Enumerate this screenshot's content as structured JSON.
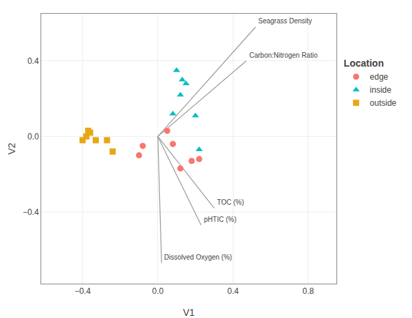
{
  "chart_data": {
    "type": "scatter",
    "xlabel": "V1",
    "ylabel": "V2",
    "legend_title": "Location",
    "legend": "right",
    "grid": true,
    "xlim": [
      -0.62,
      0.95
    ],
    "ylim": [
      -0.78,
      0.65
    ],
    "xticks": [
      {
        "value": -0.4,
        "label": "−0.4"
      },
      {
        "value": 0.0,
        "label": "0.0"
      },
      0.4,
      0.8
    ],
    "yticks": [
      {
        "value": -0.4,
        "label": "−0.4"
      },
      {
        "value": 0.0,
        "label": "0.0"
      },
      0.4
    ],
    "series": [
      {
        "name": "edge",
        "color": "#F8766D",
        "marker": "circle",
        "x": [
          0.05,
          -0.08,
          -0.1,
          0.18,
          0.22,
          0.12,
          0.08
        ],
        "values": [
          0.03,
          -0.05,
          -0.1,
          -0.13,
          -0.12,
          -0.17,
          -0.04
        ]
      },
      {
        "name": "inside",
        "color": "#00BFC4",
        "marker": "triangle-up",
        "x": [
          0.1,
          0.13,
          0.15,
          0.12,
          0.08,
          0.2,
          0.22
        ],
        "values": [
          0.35,
          0.3,
          0.28,
          0.22,
          0.12,
          0.11,
          -0.07
        ]
      },
      {
        "name": "outside",
        "color": "#E6A817",
        "marker": "square",
        "x": [
          -0.37,
          -0.36,
          -0.38,
          -0.33,
          -0.4,
          -0.27,
          -0.24
        ],
        "values": [
          0.03,
          0.02,
          0.0,
          -0.02,
          -0.02,
          -0.02,
          -0.08
        ]
      }
    ],
    "annotations": [
      {
        "text": "Seagrass Density",
        "color": "#999999",
        "x": [
          0,
          0.52
        ],
        "y": [
          0,
          0.58
        ]
      },
      {
        "text": "Carbon:Nitrogen Ratio",
        "color": "#999999",
        "x": [
          0,
          0.47
        ],
        "y": [
          0,
          0.4
        ]
      },
      {
        "text": "TOC (%)",
        "color": "#999999",
        "x": [
          0,
          0.3
        ],
        "y": [
          0,
          -0.38
        ]
      },
      {
        "text": "pHTIC (%)",
        "color": "#999999",
        "x": [
          0,
          0.23
        ],
        "y": [
          0,
          -0.47
        ]
      },
      {
        "text": "Dissolved Oxygen (%)",
        "color": "#999999",
        "x": [
          0,
          0.02
        ],
        "y": [
          0,
          -0.67
        ]
      }
    ]
  }
}
